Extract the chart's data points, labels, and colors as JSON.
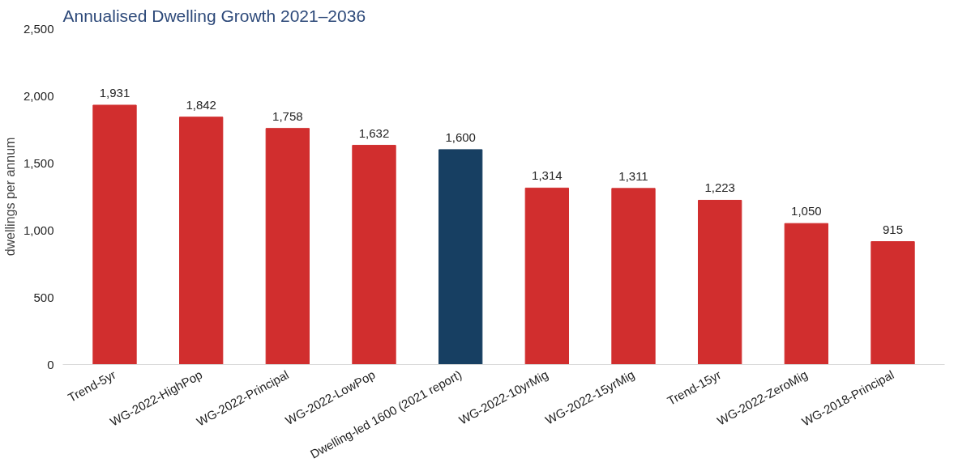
{
  "chart_data": {
    "type": "bar",
    "title": "Annualised Dwelling Growth 2021–2036",
    "ylabel": "dwellings per annum",
    "categories": [
      "Trend-5yr",
      "WG-2022-HighPop",
      "WG-2022-Principal",
      "WG-2022-LowPop",
      "Dwelling-led 1600 (2021 report)",
      "WG-2022-10yrMig",
      "WG-2022-15yrMig",
      "Trend-15yr",
      "WG-2022-ZeroMig",
      "WG-2018-Principal"
    ],
    "values": [
      1931,
      1842,
      1758,
      1632,
      1600,
      1314,
      1311,
      1223,
      1050,
      915
    ],
    "colors": [
      "#d12e2e",
      "#d12e2e",
      "#d12e2e",
      "#d12e2e",
      "#173f62",
      "#d12e2e",
      "#d12e2e",
      "#d12e2e",
      "#d12e2e",
      "#d12e2e"
    ],
    "value_labels": [
      "1,931",
      "1,842",
      "1,758",
      "1,632",
      "1,600",
      "1,314",
      "1,311",
      "1,223",
      "1,050",
      "915"
    ],
    "ylim": [
      0,
      2500
    ],
    "yticks": [
      0,
      500,
      {
        "value": 1000,
        "label": "1,000"
      },
      {
        "value": 1500,
        "label": "1,500"
      },
      {
        "value": 2000,
        "label": "2,000"
      },
      {
        "value": 2500,
        "label": "2,500"
      }
    ],
    "grid": false
  }
}
